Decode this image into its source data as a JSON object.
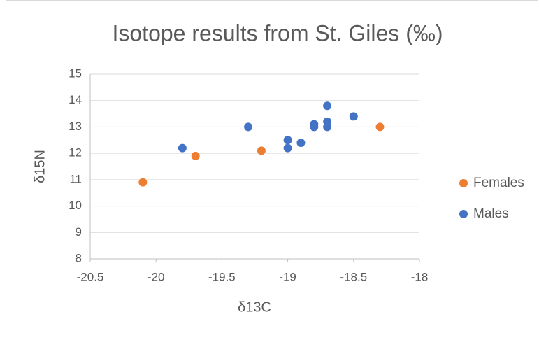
{
  "chart_data": {
    "type": "scatter",
    "title": "Isotope results from St. Giles (‰)",
    "x_label": "δ13C",
    "y_label": "δ15N",
    "xlim": [
      -20.5,
      -18
    ],
    "xticks": [
      -20.5,
      -20,
      -19.5,
      -19,
      -18.5,
      -18
    ],
    "ylim": [
      8,
      15
    ],
    "yticks": [
      8,
      9,
      10,
      11,
      12,
      13,
      14,
      15
    ],
    "grid": true,
    "legend": "right",
    "series": [
      {
        "name": "Females",
        "color": "#ed7d31",
        "x": [
          -20.1,
          -19.7,
          -19.2,
          -18.3
        ],
        "values": [
          10.9,
          11.9,
          12.1,
          13.0
        ]
      },
      {
        "name": "Males",
        "color": "#4472c4",
        "x": [
          -19.8,
          -19.3,
          -19.0,
          -19.0,
          -18.9,
          -18.8,
          -18.8,
          -18.7,
          -18.7,
          -18.7,
          -18.5
        ],
        "values": [
          12.2,
          13.0,
          12.5,
          12.2,
          12.4,
          13.1,
          13.0,
          13.8,
          13.2,
          13.0,
          13.4
        ]
      }
    ]
  }
}
